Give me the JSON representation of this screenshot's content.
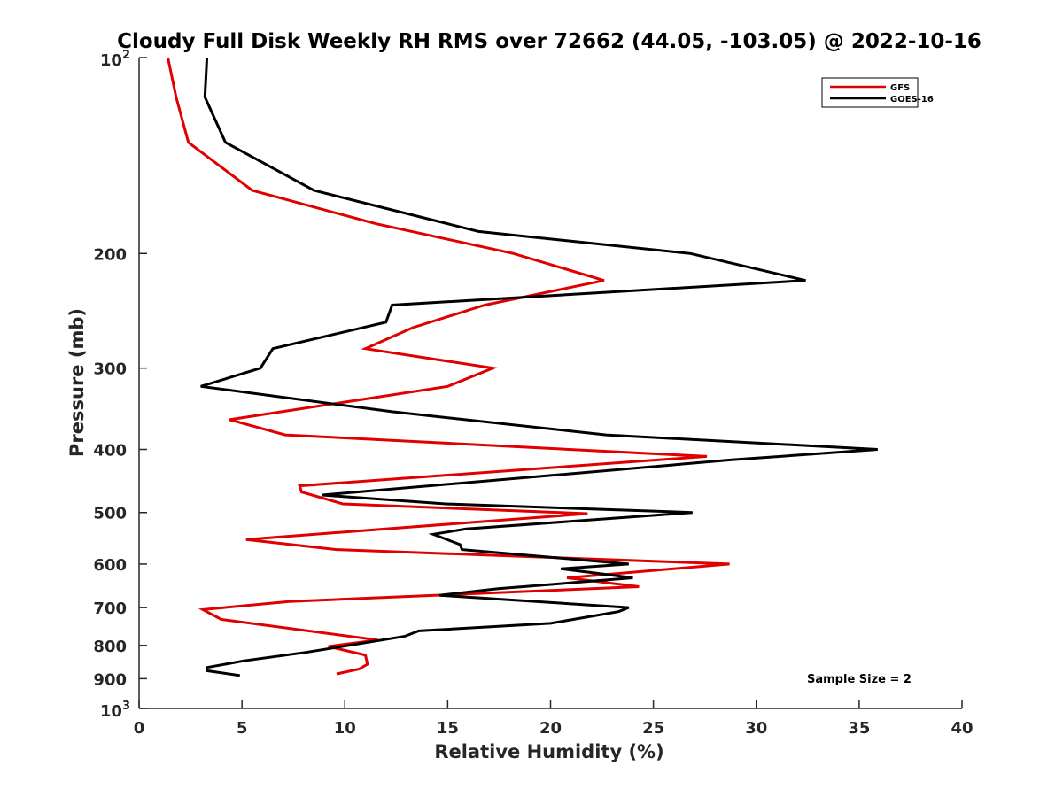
{
  "chart_data": {
    "type": "line",
    "title": "Cloudy Full Disk Weekly RH RMS over 72662 (44.05, -103.05) @ 2022-10-16",
    "xlabel": "Relative Humidity (%)",
    "ylabel": "Pressure (mb)",
    "xlim": [
      0,
      40
    ],
    "ylim": [
      100,
      1000
    ],
    "y_scale": "log",
    "y_reversed": true,
    "x_ticks": [
      "0",
      "5",
      "10",
      "15",
      "20",
      "25",
      "30",
      "35",
      "40"
    ],
    "y_ticks": [
      {
        "value": 100,
        "base": "10",
        "exp": "2"
      },
      {
        "value": 200,
        "label": "200"
      },
      {
        "value": 300,
        "label": "300"
      },
      {
        "value": 400,
        "label": "400"
      },
      {
        "value": 500,
        "label": "500"
      },
      {
        "value": 600,
        "label": "600"
      },
      {
        "value": 700,
        "label": "700"
      },
      {
        "value": 800,
        "label": "800"
      },
      {
        "value": 900,
        "label": "900"
      },
      {
        "value": 1000,
        "base": "10",
        "exp": "3"
      }
    ],
    "legend_position": "top-right",
    "annotation": "Sample Size = 2",
    "series": [
      {
        "name": "GFS",
        "color": "#e00000",
        "points": [
          [
            1.4,
            100
          ],
          [
            1.8,
            115
          ],
          [
            2.4,
            135
          ],
          [
            5.5,
            160
          ],
          [
            11.5,
            180
          ],
          [
            18.2,
            200
          ],
          [
            22.6,
            220
          ],
          [
            16.8,
            240
          ],
          [
            13.3,
            260
          ],
          [
            11.0,
            280
          ],
          [
            17.2,
            300
          ],
          [
            15.0,
            320
          ],
          [
            4.4,
            360
          ],
          [
            7.1,
            380
          ],
          [
            27.6,
            410
          ],
          [
            7.8,
            455
          ],
          [
            7.9,
            465
          ],
          [
            9.9,
            485
          ],
          [
            21.8,
            502
          ],
          [
            5.2,
            550
          ],
          [
            9.6,
            570
          ],
          [
            28.7,
            600
          ],
          [
            20.8,
            630
          ],
          [
            24.3,
            650
          ],
          [
            7.3,
            685
          ],
          [
            3.1,
            705
          ],
          [
            4.0,
            730
          ],
          [
            11.6,
            785
          ],
          [
            9.2,
            803
          ],
          [
            11.0,
            828
          ],
          [
            11.1,
            855
          ],
          [
            10.7,
            870
          ],
          [
            9.6,
            885
          ]
        ]
      },
      {
        "name": "GOES-16",
        "color": "#000000",
        "points": [
          [
            3.3,
            100
          ],
          [
            3.2,
            115
          ],
          [
            4.2,
            135
          ],
          [
            8.5,
            160
          ],
          [
            16.5,
            185
          ],
          [
            26.8,
            200
          ],
          [
            32.4,
            220
          ],
          [
            12.3,
            240
          ],
          [
            12.0,
            255
          ],
          [
            6.5,
            280
          ],
          [
            5.9,
            300
          ],
          [
            3.0,
            320
          ],
          [
            12.3,
            350
          ],
          [
            22.7,
            380
          ],
          [
            35.9,
            400
          ],
          [
            28.8,
            415
          ],
          [
            8.9,
            470
          ],
          [
            14.9,
            485
          ],
          [
            26.9,
            500
          ],
          [
            15.9,
            530
          ],
          [
            14.3,
            540
          ],
          [
            15.6,
            560
          ],
          [
            15.7,
            570
          ],
          [
            23.8,
            600
          ],
          [
            20.5,
            610
          ],
          [
            24.0,
            630
          ],
          [
            17.4,
            655
          ],
          [
            14.6,
            670
          ],
          [
            23.8,
            700
          ],
          [
            23.3,
            710
          ],
          [
            20.0,
            740
          ],
          [
            13.6,
            760
          ],
          [
            12.9,
            775
          ],
          [
            8.1,
            820
          ],
          [
            5.1,
            845
          ],
          [
            3.3,
            865
          ],
          [
            3.3,
            875
          ],
          [
            4.9,
            890
          ]
        ]
      }
    ]
  }
}
